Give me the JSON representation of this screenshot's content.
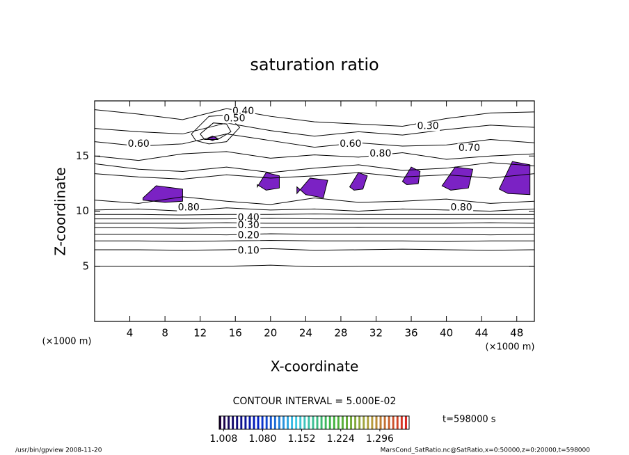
{
  "chart_data": {
    "type": "contour",
    "title": "saturation ratio",
    "x_label": "X-coordinate",
    "y_label": "Z-coordinate",
    "x_unit_label": "(×1000 m)",
    "y_unit_label": "(×1000 m)",
    "xlim": [
      0,
      50
    ],
    "xticks": [
      4,
      8,
      12,
      16,
      20,
      24,
      28,
      32,
      36,
      40,
      44,
      48
    ],
    "ylim": [
      0,
      20
    ],
    "yticks": [
      5,
      10,
      15
    ],
    "line_color": "#000000",
    "shade_color": "#7b22c4",
    "contours": [
      {
        "x": [
          0,
          5,
          10,
          15,
          20,
          25,
          30,
          35,
          40,
          45,
          50
        ],
        "z": [
          5,
          5,
          5,
          5,
          5.1,
          4.95,
          5,
          5,
          5,
          5,
          5
        ]
      },
      {
        "x": [
          0,
          5,
          10,
          15,
          20,
          25,
          30,
          35,
          40,
          45,
          50
        ],
        "z": [
          6.5,
          6.5,
          6.45,
          6.5,
          6.6,
          6.45,
          6.5,
          6.55,
          6.5,
          6.45,
          6.5
        ]
      },
      {
        "x": [
          0,
          5,
          10,
          15,
          20,
          25,
          30,
          35,
          40,
          45,
          50
        ],
        "z": [
          7.3,
          7.3,
          7.25,
          7.3,
          7.35,
          7.3,
          7.3,
          7.3,
          7.25,
          7.3,
          7.3
        ]
      },
      {
        "x": [
          0,
          5,
          10,
          15,
          20,
          25,
          30,
          35,
          40,
          45,
          50
        ],
        "z": [
          7.9,
          7.9,
          7.9,
          7.85,
          7.95,
          7.9,
          7.9,
          7.9,
          7.9,
          7.85,
          7.9
        ]
      },
      {
        "x": [
          0,
          5,
          10,
          15,
          20,
          25,
          30,
          35,
          40,
          45,
          50
        ],
        "z": [
          8.5,
          8.5,
          8.45,
          8.5,
          8.5,
          8.5,
          8.55,
          8.5,
          8.5,
          8.5,
          8.5
        ]
      },
      {
        "x": [
          0,
          5,
          10,
          15,
          20,
          25,
          30,
          35,
          40,
          45,
          50
        ],
        "z": [
          8.9,
          8.9,
          8.9,
          8.95,
          8.9,
          8.9,
          8.9,
          8.9,
          8.9,
          8.95,
          8.9
        ]
      },
      {
        "x": [
          0,
          5,
          10,
          15,
          20,
          25,
          30,
          35,
          40,
          45,
          50
        ],
        "z": [
          9.3,
          9.3,
          9.3,
          9.3,
          9.35,
          9.3,
          9.3,
          9.3,
          9.3,
          9.3,
          9.3
        ]
      },
      {
        "x": [
          0,
          5,
          10,
          15,
          20,
          25,
          30,
          35,
          40,
          45,
          50
        ],
        "z": [
          9.7,
          9.7,
          9.65,
          9.7,
          9.7,
          9.75,
          9.7,
          9.7,
          9.7,
          9.7,
          9.7
        ]
      },
      {
        "x": [
          0,
          5,
          10,
          15,
          20,
          25,
          30,
          35,
          40,
          45,
          50
        ],
        "z": [
          10.1,
          10.2,
          10.0,
          10.3,
          10.1,
          10.2,
          10.0,
          10.2,
          10.1,
          10.0,
          10.2
        ]
      },
      {
        "x": [
          0,
          5,
          10,
          15,
          20,
          25,
          30,
          35,
          40,
          45,
          50
        ],
        "z": [
          11.0,
          10.7,
          11.3,
          10.9,
          10.6,
          11.2,
          10.8,
          10.9,
          11.1,
          10.7,
          10.9
        ]
      },
      {
        "x": [
          0,
          5,
          10,
          15,
          20,
          25,
          30,
          35,
          40,
          45,
          50
        ],
        "z": [
          13.4,
          13.1,
          12.9,
          13.3,
          13.0,
          13.2,
          13.5,
          13.1,
          13.3,
          13.0,
          13.4
        ]
      },
      {
        "x": [
          0,
          5,
          10,
          15,
          20,
          25,
          30,
          35,
          40,
          45,
          50
        ],
        "z": [
          14.3,
          13.8,
          13.6,
          14.0,
          13.5,
          13.9,
          14.2,
          13.7,
          13.9,
          14.4,
          14.1
        ]
      },
      {
        "x": [
          0,
          5,
          10,
          15,
          20,
          25,
          30,
          35,
          40,
          45,
          50
        ],
        "z": [
          15.0,
          14.6,
          15.2,
          15.4,
          14.8,
          15.1,
          14.9,
          15.3,
          14.7,
          15.0,
          15.2
        ]
      },
      {
        "x": [
          0,
          5,
          10,
          15,
          20,
          25,
          30,
          35,
          40,
          45,
          50
        ],
        "z": [
          16.3,
          15.9,
          16.1,
          17.0,
          16.4,
          15.8,
          16.2,
          15.9,
          16.0,
          16.5,
          16.2
        ]
      },
      {
        "x": [
          0,
          5,
          10,
          15,
          20,
          25,
          30,
          35,
          40,
          45,
          50
        ],
        "z": [
          17.5,
          17.2,
          17.0,
          18.0,
          17.3,
          16.8,
          17.2,
          16.9,
          17.4,
          17.8,
          17.6
        ]
      },
      {
        "x": [
          0,
          5,
          10,
          15,
          20,
          25,
          30,
          35,
          40,
          45,
          50
        ],
        "z": [
          19.2,
          18.8,
          18.3,
          19.3,
          18.6,
          18.1,
          17.9,
          17.7,
          18.4,
          18.9,
          19.0
        ]
      },
      {
        "x": [
          11,
          13,
          15,
          16.5,
          15,
          13,
          11.5,
          11
        ],
        "z": [
          17,
          18.6,
          18.7,
          17.6,
          16.3,
          16.1,
          16.4,
          17
        ]
      },
      {
        "x": [
          12,
          13.5,
          15,
          15.5,
          14,
          12.5,
          12
        ],
        "z": [
          17,
          18,
          17.9,
          17.2,
          16.5,
          16.5,
          17
        ]
      }
    ],
    "shaded_regions": [
      {
        "x": [
          5.5,
          7,
          10,
          10,
          8,
          5.5
        ],
        "z": [
          11.2,
          12.3,
          12,
          10.9,
          10.8,
          11.0
        ]
      },
      {
        "x": [
          18.5,
          19.5,
          21,
          21,
          19.5,
          18.5
        ],
        "z": [
          12.2,
          13.5,
          13.2,
          12.1,
          11.9,
          12.4
        ]
      },
      {
        "x": [
          23,
          24.5,
          26.5,
          26,
          24,
          23
        ],
        "z": [
          11.6,
          13,
          12.8,
          11.2,
          11.5,
          12.2
        ]
      },
      {
        "x": [
          29,
          30,
          31,
          30.5,
          29.5,
          29
        ],
        "z": [
          12.2,
          13.5,
          13.2,
          12,
          11.9,
          12.2
        ]
      },
      {
        "x": [
          35,
          36,
          37,
          36.8,
          35.5,
          35
        ],
        "z": [
          12.7,
          14,
          13.6,
          12.5,
          12.4,
          12.7
        ]
      },
      {
        "x": [
          39.5,
          41,
          43,
          42.5,
          40.5,
          39.5
        ],
        "z": [
          12.3,
          14,
          13.8,
          12.1,
          11.9,
          12.3
        ]
      },
      {
        "x": [
          46,
          47.5,
          49.5,
          49.5,
          47,
          46
        ],
        "z": [
          12.0,
          14.5,
          14.2,
          11.5,
          11.6,
          12.0
        ]
      },
      {
        "x": [
          12.8,
          13.4,
          14,
          13.4,
          12.8
        ],
        "z": [
          16.6,
          16.8,
          16.6,
          16.4,
          16.6
        ]
      }
    ],
    "contour_labels": [
      {
        "text": "0.40",
        "x": 16.9,
        "z": 19.05
      },
      {
        "text": "0.50",
        "x": 15.9,
        "z": 18.4
      },
      {
        "text": "0.30",
        "x": 37.9,
        "z": 17.7
      },
      {
        "text": "0.60",
        "x": 5.0,
        "z": 16.1
      },
      {
        "text": "0.60",
        "x": 29.1,
        "z": 16.1
      },
      {
        "text": "0.80",
        "x": 32.5,
        "z": 15.2
      },
      {
        "text": "0.70",
        "x": 42.6,
        "z": 15.7
      },
      {
        "text": "0.80",
        "x": 10.7,
        "z": 10.3
      },
      {
        "text": "0.80",
        "x": 41.7,
        "z": 10.3
      },
      {
        "text": "0.40",
        "x": 17.5,
        "z": 9.4
      },
      {
        "text": "0.30",
        "x": 17.5,
        "z": 8.7
      },
      {
        "text": "0.20",
        "x": 17.5,
        "z": 7.8
      },
      {
        "text": "0.10",
        "x": 17.5,
        "z": 6.4
      }
    ],
    "contour_interval": "CONTOUR INTERVAL = 5.000E-02",
    "time_label": "t=598000 s",
    "colorbar": {
      "lim": [
        1.0,
        1.35
      ],
      "ticks": [
        1.008,
        1.08,
        1.152,
        1.224,
        1.296
      ],
      "tick_labels": [
        "1.008",
        "1.080",
        "1.152",
        "1.224",
        "1.296"
      ]
    },
    "footer_left": "/usr/bin/gpview  2008-11-20",
    "footer_right": "MarsCond_SatRatio.nc@SatRatio,x=0:50000,z=0:20000,t=598000"
  }
}
